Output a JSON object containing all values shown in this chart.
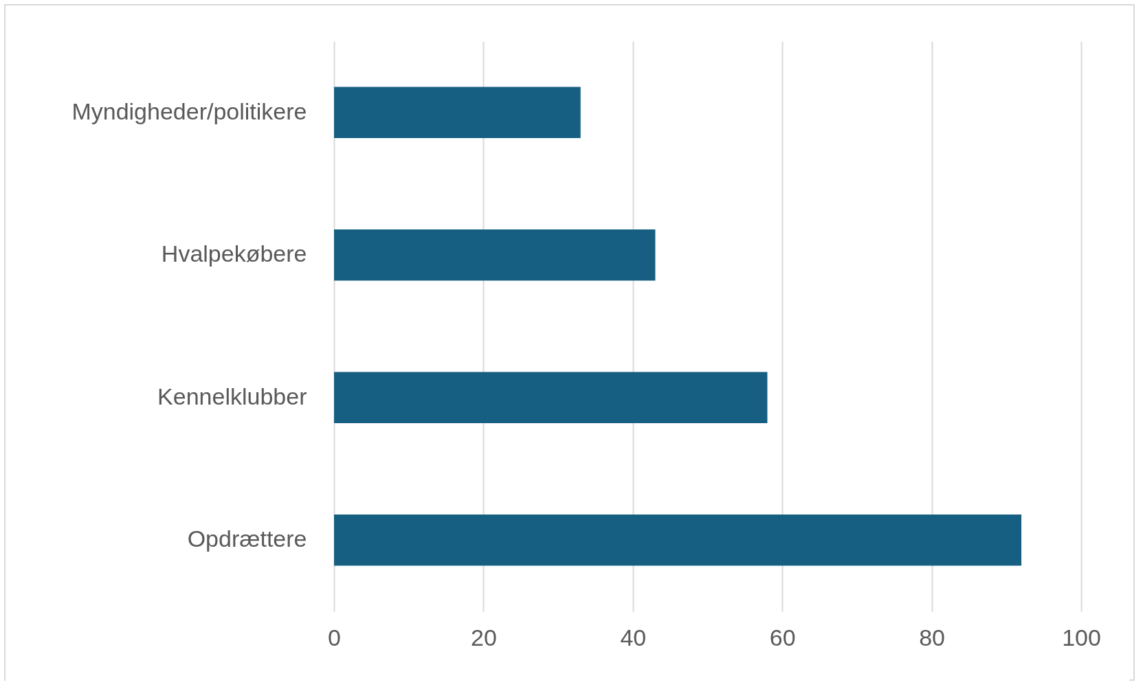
{
  "chart_data": {
    "type": "bar",
    "orientation": "horizontal",
    "categories": [
      "Myndigheder/politikere",
      "Hvalpekøbere",
      "Kennelklubber",
      "Opdrættere"
    ],
    "values": [
      33,
      43,
      58,
      92
    ],
    "color": "#175f82",
    "xlim": [
      0,
      100
    ],
    "xticks": [
      0,
      20,
      40,
      60,
      80,
      100
    ],
    "grid": "x"
  }
}
